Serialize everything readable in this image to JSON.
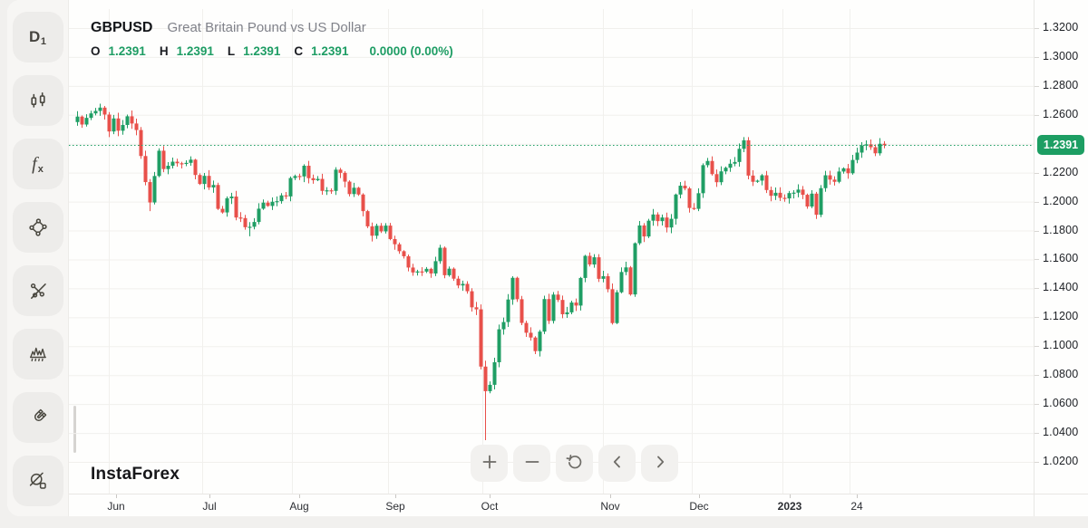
{
  "header": {
    "symbol": "GBPUSD",
    "description": "Great Britain Pound vs US Dollar",
    "ohlc": {
      "o_label": "O",
      "o": "1.2391",
      "h_label": "H",
      "h": "1.2391",
      "l_label": "L",
      "l": "1.2391",
      "c_label": "C",
      "c": "1.2391",
      "change": "0.0000 (0.00%)"
    }
  },
  "watermark": "InstaForex",
  "sidebar": {
    "timeframe_main": "D",
    "timeframe_sub": "1",
    "fx_main": "f",
    "fx_sub": "x",
    "items": [
      {
        "icon": "timeframe-d1-icon",
        "tooltip": "D1"
      },
      {
        "icon": "candlestick-style-icon"
      },
      {
        "icon": "fx-indicators-icon"
      },
      {
        "icon": "shape-anchors-icon"
      },
      {
        "icon": "trend-lines-icon"
      },
      {
        "icon": "peaks-pattern-icon"
      },
      {
        "icon": "magnet-icon"
      },
      {
        "icon": "hide-drawings-icon"
      }
    ]
  },
  "controls": {
    "icons": [
      "plus-icon",
      "minus-icon",
      "reset-rotate-icon",
      "chevron-left-icon",
      "chevron-right-icon"
    ]
  },
  "price_scale": {
    "ticks": [
      "1.3200",
      "1.3000",
      "1.2800",
      "1.2600",
      "1.2200",
      "1.2000",
      "1.1800",
      "1.1600",
      "1.1400",
      "1.1200",
      "1.1000",
      "1.0800",
      "1.0600",
      "1.0400",
      "1.0200"
    ],
    "last_price": "1.2391"
  },
  "time_scale": {
    "labels": [
      {
        "text": "Jun",
        "x": 120,
        "bold": false
      },
      {
        "text": "Jul",
        "x": 223,
        "bold": false
      },
      {
        "text": "Aug",
        "x": 322,
        "bold": false
      },
      {
        "text": "Sep",
        "x": 428,
        "bold": false
      },
      {
        "text": "Oct",
        "x": 532,
        "bold": false
      },
      {
        "text": "Nov",
        "x": 665,
        "bold": false
      },
      {
        "text": "Dec",
        "x": 763,
        "bold": false
      },
      {
        "text": "2023",
        "x": 863,
        "bold": true
      },
      {
        "text": "24",
        "x": 937,
        "bold": false
      }
    ]
  },
  "chart_data": {
    "type": "candlestick",
    "symbol": "GBPUSD",
    "timeframe": "D1",
    "title": "GBPUSD Great Britain Pound vs US Dollar, daily candles May 2022 - Jan 2023",
    "ohlc_current": {
      "open": 1.2391,
      "high": 1.2391,
      "low": 1.2391,
      "close": 1.2391,
      "change": 0.0,
      "change_pct": 0.0
    },
    "last_price": 1.2391,
    "y_axis": {
      "min": 1.02,
      "max": 1.32,
      "tick_step": 0.02,
      "grid": true
    },
    "x_axis": {
      "labels": [
        "Jun",
        "Jul",
        "Aug",
        "Sep",
        "Oct",
        "Nov",
        "Dec",
        "2023",
        "24"
      ]
    },
    "legend_position": "none",
    "colors": {
      "up": "#1f9e64",
      "down": "#e8504a",
      "last_price_line": "#1d9e63",
      "grid": "#f1f0ed"
    },
    "series": {
      "first_open": 1.255,
      "closes": [
        1.2588,
        1.2533,
        1.2579,
        1.261,
        1.2627,
        1.265,
        1.2602,
        1.2485,
        1.2575,
        1.249,
        1.253,
        1.259,
        1.254,
        1.2495,
        1.2315,
        1.2135,
        1.1994,
        1.2177,
        1.2352,
        1.2225,
        1.2248,
        1.2276,
        1.2265,
        1.2261,
        1.2268,
        1.229,
        1.2184,
        1.2122,
        1.2178,
        1.2098,
        1.2115,
        1.195,
        1.1925,
        1.2023,
        1.2035,
        1.189,
        1.1886,
        1.1823,
        1.1826,
        1.1859,
        1.1951,
        1.1993,
        1.197,
        1.1999,
        1.2003,
        1.2043,
        1.2036,
        1.2163,
        1.2177,
        1.2174,
        1.2248,
        1.2162,
        1.2148,
        1.2157,
        1.2074,
        1.2078,
        1.2074,
        1.2221,
        1.2199,
        1.2138,
        1.2052,
        1.2096,
        1.2049,
        1.1934,
        1.1829,
        1.1764,
        1.1833,
        1.1794,
        1.1834,
        1.1741,
        1.1705,
        1.1657,
        1.1622,
        1.1544,
        1.151,
        1.1517,
        1.1516,
        1.1535,
        1.1503,
        1.1588,
        1.1681,
        1.1491,
        1.1536,
        1.1467,
        1.142,
        1.1431,
        1.138,
        1.1269,
        1.1255,
        1.0859,
        1.0689,
        1.0733,
        1.0889,
        1.1117,
        1.1167,
        1.1323,
        1.1473,
        1.1325,
        1.1161,
        1.1093,
        1.106,
        1.0966,
        1.1101,
        1.1326,
        1.1175,
        1.1357,
        1.132,
        1.1221,
        1.1234,
        1.1302,
        1.1281,
        1.1472,
        1.1625,
        1.1565,
        1.1615,
        1.1466,
        1.1484,
        1.1394,
        1.116,
        1.1373,
        1.1513,
        1.1545,
        1.1358,
        1.1712,
        1.1835,
        1.1759,
        1.1868,
        1.1911,
        1.1865,
        1.189,
        1.1821,
        1.1881,
        1.2049,
        1.211,
        1.2091,
        1.1956,
        1.195,
        1.2058,
        1.2252,
        1.2281,
        1.219,
        1.2134,
        1.2209,
        1.2234,
        1.2262,
        1.2274,
        1.2365,
        1.2424,
        1.218,
        1.2137,
        1.2145,
        1.2182,
        1.208,
        1.204,
        1.2061,
        1.2026,
        1.2022,
        1.2059,
        1.2062,
        1.2083,
        1.2047,
        1.1966,
        1.2055,
        1.1909,
        1.2093,
        1.2182,
        1.2152,
        1.2137,
        1.2208,
        1.223,
        1.2196,
        1.2288,
        1.2339,
        1.2388,
        1.2396,
        1.2376,
        1.2334,
        1.24,
        1.2391
      ],
      "wick_overrides": {
        "16": {
          "low": 1.1934
        },
        "38": {
          "low": 1.176
        },
        "89": {
          "low": 1.084
        },
        "90": {
          "high": 1.09,
          "low": 1.035
        },
        "118": {
          "low": 1.115
        },
        "147": {
          "high": 1.2446
        },
        "175": {
          "high": 1.243
        }
      }
    }
  }
}
